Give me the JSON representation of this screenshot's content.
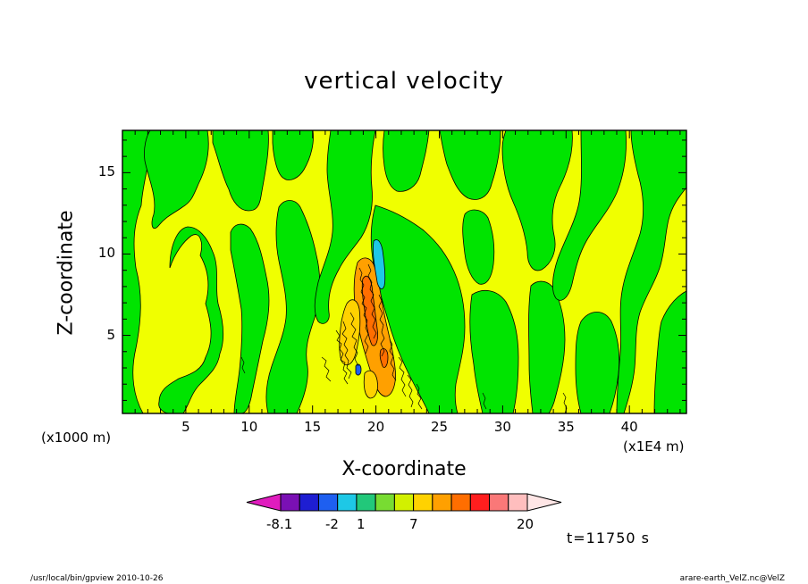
{
  "chart_data": {
    "type": "heatmap",
    "title": "vertical velocity",
    "xlabel": "X-coordinate",
    "ylabel": "Z-coordinate",
    "x_unit_label": "(x1000 m)",
    "x_scale_label": "(x1E4 m)",
    "xlim": [
      0,
      44.5
    ],
    "ylim": [
      0.2,
      17.6
    ],
    "x_ticks": [
      "5",
      "10",
      "15",
      "20",
      "25",
      "30",
      "35",
      "40"
    ],
    "y_ticks": [
      "5",
      "10",
      "15"
    ],
    "colorbar": {
      "tick_labels": [
        "-8.1",
        "-2",
        "1",
        "7",
        "20"
      ],
      "colors": [
        "#e01cbe",
        "#7a10b4",
        "#1e1ed2",
        "#1e5ff0",
        "#1ec8e6",
        "#22c87a",
        "#78dc32",
        "#d2f000",
        "#ffd200",
        "#ffa000",
        "#ff6e00",
        "#ff1e1e",
        "#fa7878",
        "#ffbebe",
        "#ffe6e6"
      ]
    },
    "colors": {
      "background_positive": "#f0ff00",
      "background_negative": "#00e400"
    },
    "time_label": "t=11750 s"
  },
  "footer": {
    "left": "/usr/local/bin/gpview  2010-10-26",
    "right": "arare-earth_VelZ.nc@VelZ"
  }
}
